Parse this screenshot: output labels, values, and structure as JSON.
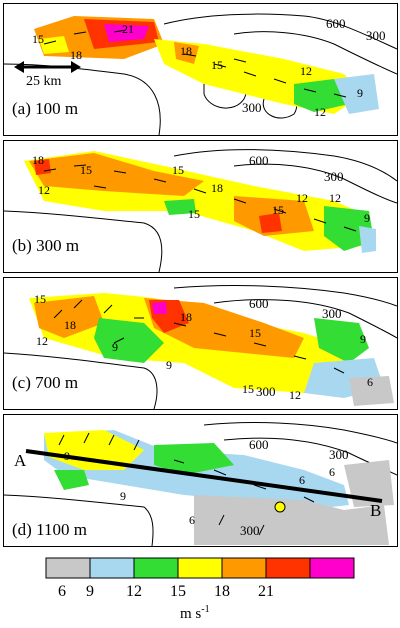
{
  "panels": [
    {
      "label": "(a) 100 m",
      "contours": [
        "600",
        "300",
        "300"
      ],
      "speeds": [
        "15",
        "18",
        "21",
        "18",
        "15",
        "12",
        "12",
        "9"
      ],
      "scale_label": "25 km"
    },
    {
      "label": "(b) 300 m",
      "contours": [
        "600",
        "300"
      ],
      "speeds": [
        "18",
        "15",
        "12",
        "15",
        "18",
        "15",
        "12",
        "12",
        "9",
        "15"
      ]
    },
    {
      "label": "(c) 700 m",
      "contours": [
        "600",
        "300",
        "300"
      ],
      "speeds": [
        "15",
        "18",
        "12",
        "9",
        "18",
        "15",
        "15",
        "12",
        "9",
        "6",
        "9"
      ]
    },
    {
      "label": "(d) 1100 m",
      "contours": [
        "600",
        "300",
        "300"
      ],
      "speeds": [
        "9",
        "9",
        "6",
        "6",
        "6"
      ],
      "section_start": "A",
      "section_end": "B"
    }
  ],
  "colorbar": {
    "colors": [
      "#c8c8c8",
      "#a8d8f0",
      "#33dd33",
      "#ffff00",
      "#ff9900",
      "#ff3300",
      "#ff00cc"
    ],
    "ticks": [
      "6",
      "9",
      "12",
      "15",
      "18",
      "21"
    ],
    "unit": "m s",
    "unit_exp": "-1"
  }
}
